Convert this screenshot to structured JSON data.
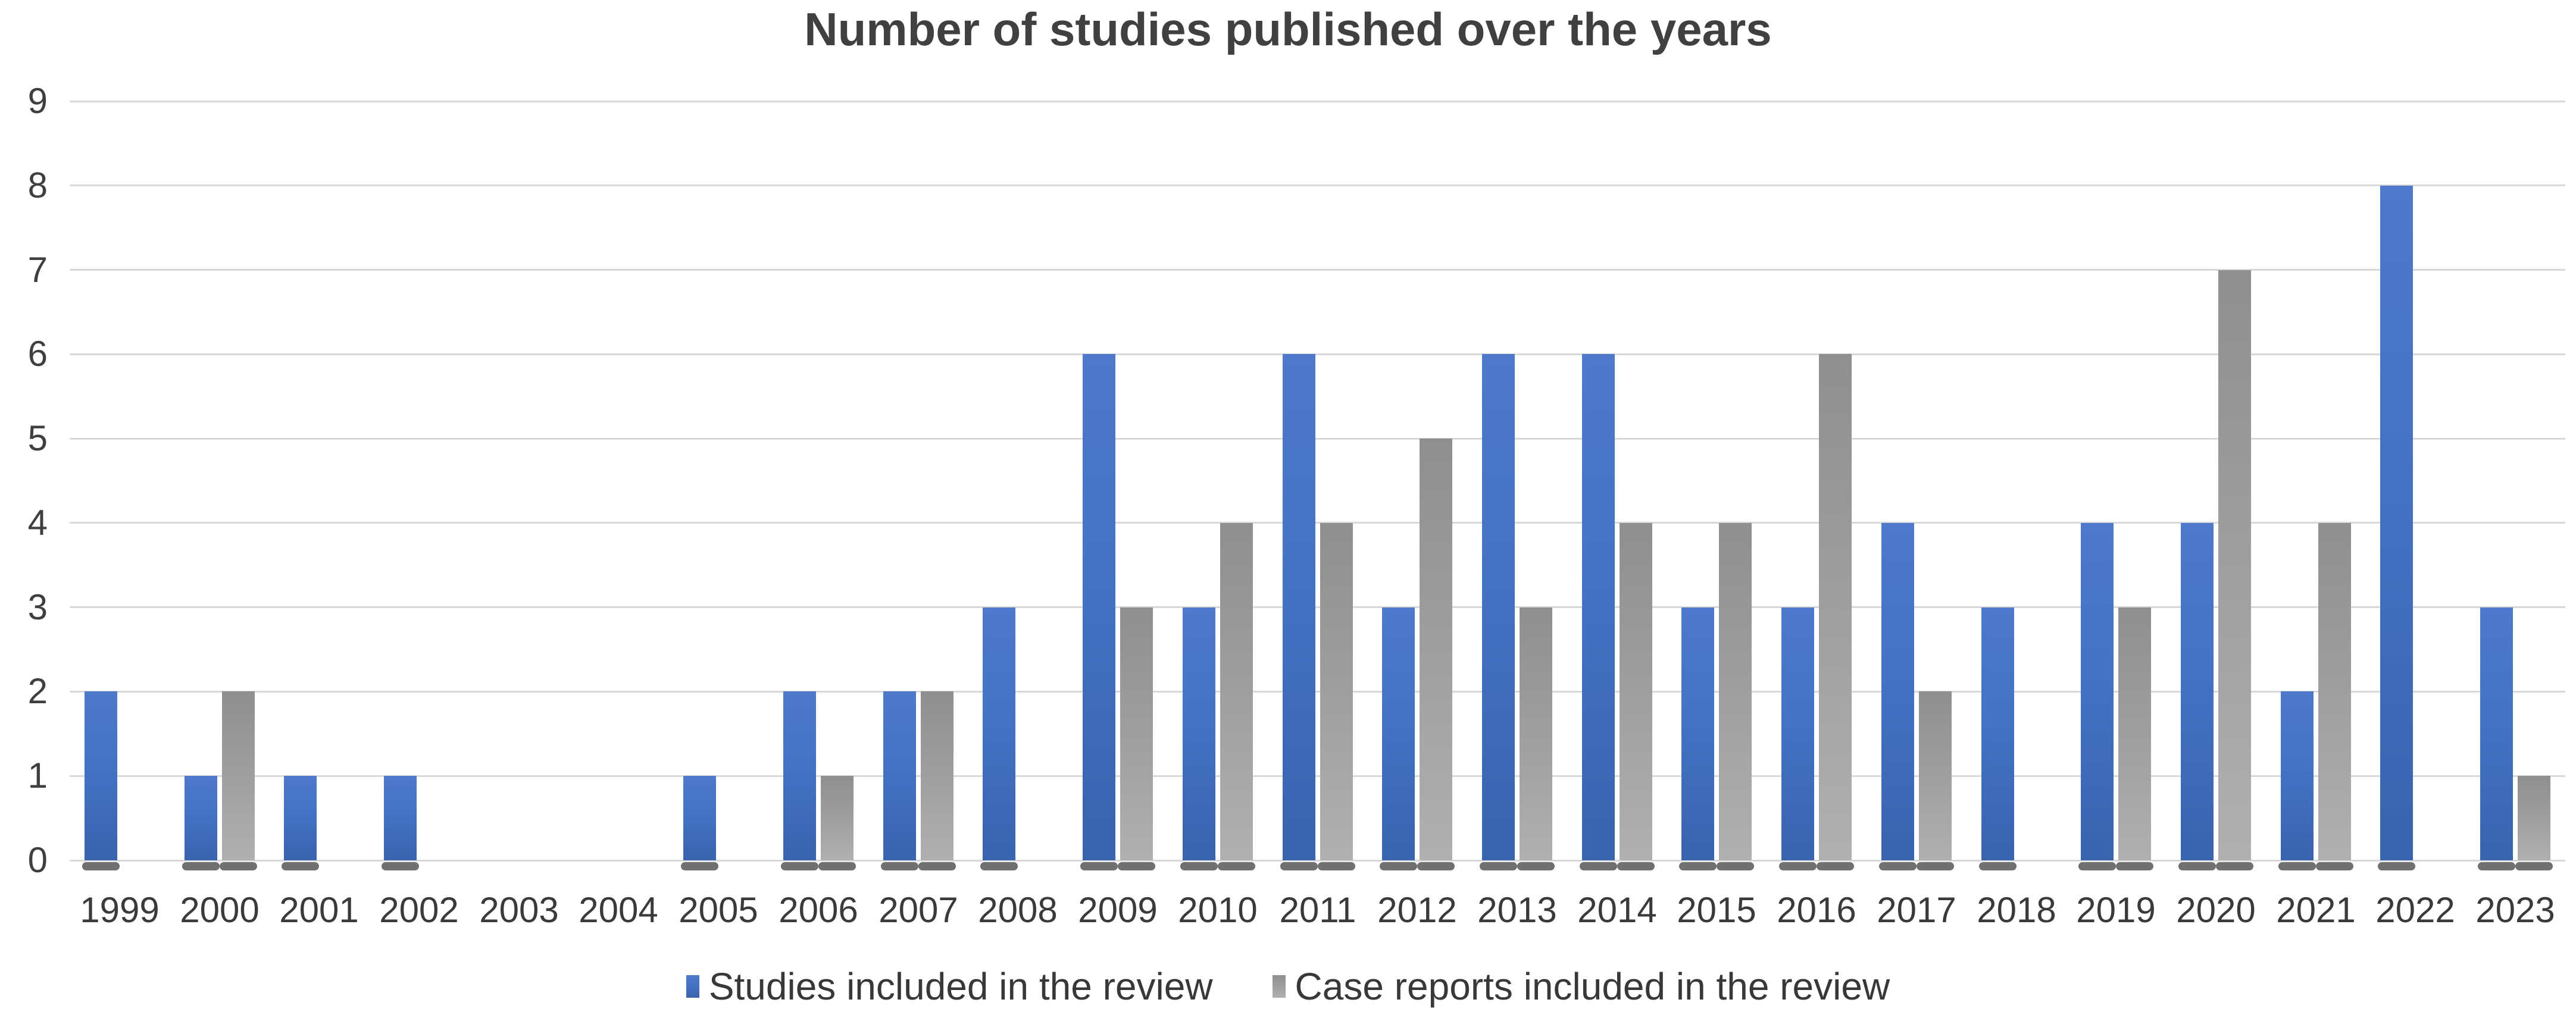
{
  "title": "Number of studies published over the years",
  "colors": {
    "background": "#FFFFFF",
    "title_text": "#404040",
    "axis_text": "#3F3F3F",
    "x_axis_text": "#3A3A3A",
    "legend_text": "#383838",
    "gridline": "#D9D9D9",
    "bar_shadow": "#606060",
    "studies_blue": "#4472C4",
    "case_reports_gray": "#A6A6A6"
  },
  "chart_data": {
    "type": "bar",
    "title": "Number of studies published over the years",
    "categories": [
      "1999",
      "2000",
      "2001",
      "2002",
      "2003",
      "2004",
      "2005",
      "2006",
      "2007",
      "2008",
      "2009",
      "2010",
      "2011",
      "2012",
      "2013",
      "2014",
      "2015",
      "2016",
      "2017",
      "2018",
      "2019",
      "2020",
      "2021",
      "2022",
      "2023"
    ],
    "series": [
      {
        "name": "Studies included in the review",
        "color": "#4472C4",
        "gradient": {
          "top": "#4F79CB",
          "mid": "#4472C4",
          "bottom": "#3A63AE"
        },
        "values": [
          2,
          1,
          1,
          1,
          0,
          0,
          1,
          2,
          2,
          3,
          6,
          3,
          6,
          3,
          6,
          6,
          3,
          3,
          4,
          3,
          4,
          4,
          2,
          8,
          3
        ]
      },
      {
        "name": "Case reports included in the review",
        "color": "#A6A6A6",
        "gradient": {
          "top": "#8F8F8F",
          "mid": "#9D9D9D",
          "bottom": "#B0B0B0"
        },
        "values": [
          0,
          2,
          0,
          0,
          0,
          0,
          0,
          1,
          2,
          0,
          3,
          4,
          4,
          5,
          3,
          4,
          4,
          6,
          2,
          0,
          3,
          7,
          4,
          0,
          1
        ]
      }
    ],
    "ylim": [
      0,
      9
    ],
    "yticks": [
      0,
      1,
      2,
      3,
      4,
      5,
      6,
      7,
      8,
      9
    ],
    "grid": true,
    "legend_position": "bottom"
  }
}
